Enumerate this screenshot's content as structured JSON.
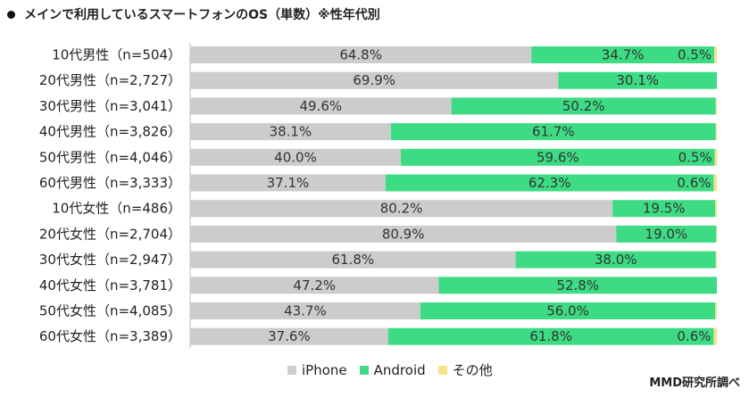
{
  "title": "メインで利用しているスマートフォンのOS（単数）※性年代別",
  "source": "MMD研究所調べ",
  "colors": {
    "iPhone": "#cccccc",
    "Android": "#3ddc84",
    "other": "#f7e38a"
  },
  "chart_data": {
    "type": "bar",
    "orientation": "horizontal",
    "stacked": "100%",
    "categories": [
      "10代男性（n=504）",
      "20代男性（n=2,727）",
      "30代男性（n=3,041）",
      "40代男性（n=3,826）",
      "50代男性（n=4,046）",
      "60代男性（n=3,333）",
      "10代女性（n=486）",
      "20代女性（n=2,704）",
      "30代女性（n=2,947）",
      "40代女性（n=3,781）",
      "50代女性（n=4,085）",
      "60代女性（n=3,389）"
    ],
    "series": [
      {
        "name": "iPhone",
        "values": [
          64.8,
          69.9,
          49.6,
          38.1,
          40.0,
          37.1,
          80.2,
          80.9,
          61.8,
          47.2,
          43.7,
          37.6
        ]
      },
      {
        "name": "Android",
        "values": [
          34.7,
          30.1,
          50.2,
          61.7,
          59.6,
          62.3,
          19.5,
          19.0,
          38.0,
          52.8,
          56.0,
          61.8
        ]
      },
      {
        "name": "その他",
        "values": [
          0.5,
          0.0,
          0.2,
          0.2,
          0.5,
          0.6,
          0.3,
          0.1,
          0.2,
          0.0,
          0.3,
          0.6
        ]
      }
    ],
    "labels": [
      [
        "64.8%",
        "34.7%",
        "0.5%"
      ],
      [
        "69.9%",
        "30.1%",
        ""
      ],
      [
        "49.6%",
        "50.2%",
        ""
      ],
      [
        "38.1%",
        "61.7%",
        ""
      ],
      [
        "40.0%",
        "59.6%",
        "0.5%"
      ],
      [
        "37.1%",
        "62.3%",
        "0.6%"
      ],
      [
        "80.2%",
        "19.5%",
        ""
      ],
      [
        "80.9%",
        "19.0%",
        ""
      ],
      [
        "61.8%",
        "38.0%",
        ""
      ],
      [
        "47.2%",
        "52.8%",
        ""
      ],
      [
        "43.7%",
        "56.0%",
        ""
      ],
      [
        "37.6%",
        "61.8%",
        "0.6%"
      ]
    ],
    "legend": [
      "iPhone",
      "Android",
      "その他"
    ],
    "legend_position": "bottom"
  }
}
